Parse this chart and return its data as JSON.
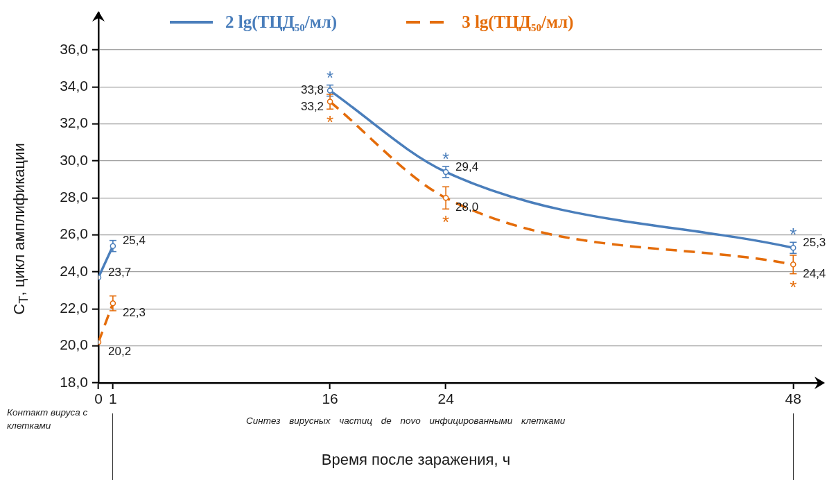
{
  "chart_data": {
    "type": "line",
    "xlabel": "Время после заражения, ч",
    "ylabel": "C$_{T}$, цикл амплификации",
    "xlim": [
      0,
      50
    ],
    "xticks": [
      0,
      1,
      16,
      24,
      48
    ],
    "ylim": [
      18,
      38
    ],
    "yticks": [
      {
        "value": 18,
        "label": "18,0"
      },
      {
        "value": 20,
        "label": "20,0"
      },
      {
        "value": 22,
        "label": "22,0"
      },
      {
        "value": 24,
        "label": "24,0"
      },
      {
        "value": 26,
        "label": "26,0"
      },
      {
        "value": 28,
        "label": "28,0"
      },
      {
        "value": 30,
        "label": "30,0"
      },
      {
        "value": 32,
        "label": "32,0"
      },
      {
        "value": 34,
        "label": "34,0"
      },
      {
        "value": 36,
        "label": "36,0"
      }
    ],
    "grid": "y",
    "legend": "top",
    "marker": "circle",
    "series": [
      {
        "name": "2 lg(ТЦД₅₀/мл)",
        "color": "#4a7ebb",
        "line_style": "solid",
        "x": [
          16,
          24,
          48
        ],
        "values": [
          33.8,
          29.4,
          25.3
        ],
        "errors": [
          0.3,
          0.3,
          0.3
        ],
        "value_labels": [
          "33,8",
          "29,4",
          "25,3"
        ]
      },
      {
        "name": "3 lg(ТЦД₅₀/мл)",
        "color": "#e46c0a",
        "line_style": "dashed",
        "x": [
          16,
          24,
          48
        ],
        "values": [
          33.2,
          28.0,
          24.4
        ],
        "errors": [
          0.4,
          0.6,
          0.5
        ],
        "value_labels": [
          "33,2",
          "28,0",
          "24,4"
        ]
      },
      {
        "color": "#4a7ebb",
        "line_style": "solid",
        "x": [
          0,
          1
        ],
        "values": [
          23.7,
          25.4
        ],
        "errors": [
          null,
          0.3
        ],
        "value_labels": [
          "23,7",
          "25,4"
        ]
      },
      {
        "color": "#e46c0a",
        "line_style": "dashed",
        "x": [
          0,
          1
        ],
        "values": [
          20.2,
          22.3
        ],
        "errors": [
          null,
          0.4
        ],
        "value_labels": [
          "20,2",
          "22,3"
        ]
      }
    ],
    "annotations": [
      {
        "text": "*",
        "x": 16,
        "y": 33.8
      },
      {
        "text": "*",
        "x": 16,
        "y": 33.2
      },
      {
        "text": "*",
        "x": 24,
        "y": 29.4
      },
      {
        "text": "*",
        "x": 24,
        "y": 28.0
      },
      {
        "text": "*",
        "x": 48,
        "y": 25.3
      },
      {
        "text": "*",
        "x": 48,
        "y": 24.4
      },
      "Контакт вируса с клетками",
      "Синтез вирусных частиц de novo инфицированными клетками"
    ]
  }
}
